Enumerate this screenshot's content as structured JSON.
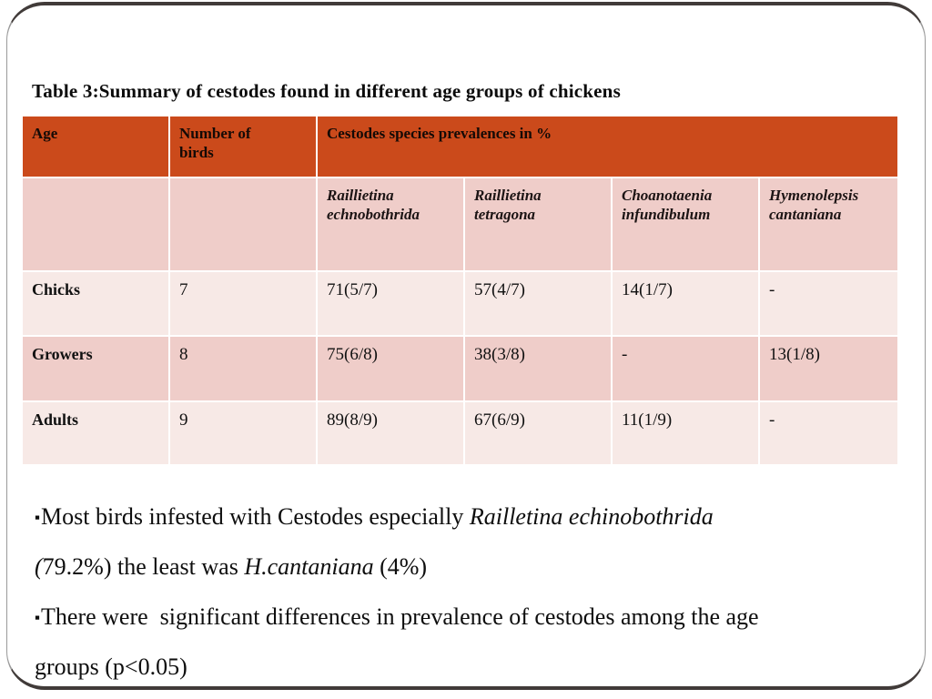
{
  "slide": {
    "title": "Table 3:Summary of cestodes found in different age groups of chickens"
  },
  "colors": {
    "table_header_bg": "#cb4a1b",
    "row_light_pink": "#f7e9e6",
    "row_medium_pink": "#efcdc9",
    "frame_border_dark": "#413b39",
    "text": "#111111"
  },
  "table": {
    "header": {
      "age": "Age",
      "birds": "Number of\nbirds",
      "prevalence": "Cestodes species prevalences in %"
    },
    "species": [
      "Raillietina\nechnobothrida",
      "Raillietina\ntetragona",
      "Choanotaenia\ninfundibulum",
      "Hymenolepsis\ncantaniana"
    ],
    "rows": [
      {
        "label": "Chicks",
        "n": "7",
        "values": [
          "71(5/7)",
          "57(4/7)",
          "14(1/7)",
          "-"
        ]
      },
      {
        "label": "Growers",
        "n": "8",
        "values": [
          "75(6/8)",
          "38(3/8)",
          "-",
          "13(1/8)"
        ]
      },
      {
        "label": "Adults",
        "n": "9",
        "values": [
          "89(8/9)",
          "67(6/9)",
          "11(1/9)",
          "-"
        ]
      }
    ]
  },
  "bullets": {
    "marker": "▪",
    "b1_line1": [
      {
        "t": "Most birds infested with Cestodes especially ",
        "i": false
      },
      {
        "t": "Railletina echinobothrida",
        "i": true
      }
    ],
    "b1_line2": [
      {
        "t": "(",
        "i": true
      },
      {
        "t": "79.2%) the least was ",
        "i": false
      },
      {
        "t": "H.cantaniana",
        "i": true
      },
      {
        "t": " (4%)",
        "i": false
      }
    ],
    "b2_line1": [
      {
        "t": "There were  significant differences in prevalence of cestodes among the age",
        "i": false
      }
    ],
    "b2_line2": [
      {
        "t": "groups (p<0.05)",
        "i": false
      }
    ]
  }
}
